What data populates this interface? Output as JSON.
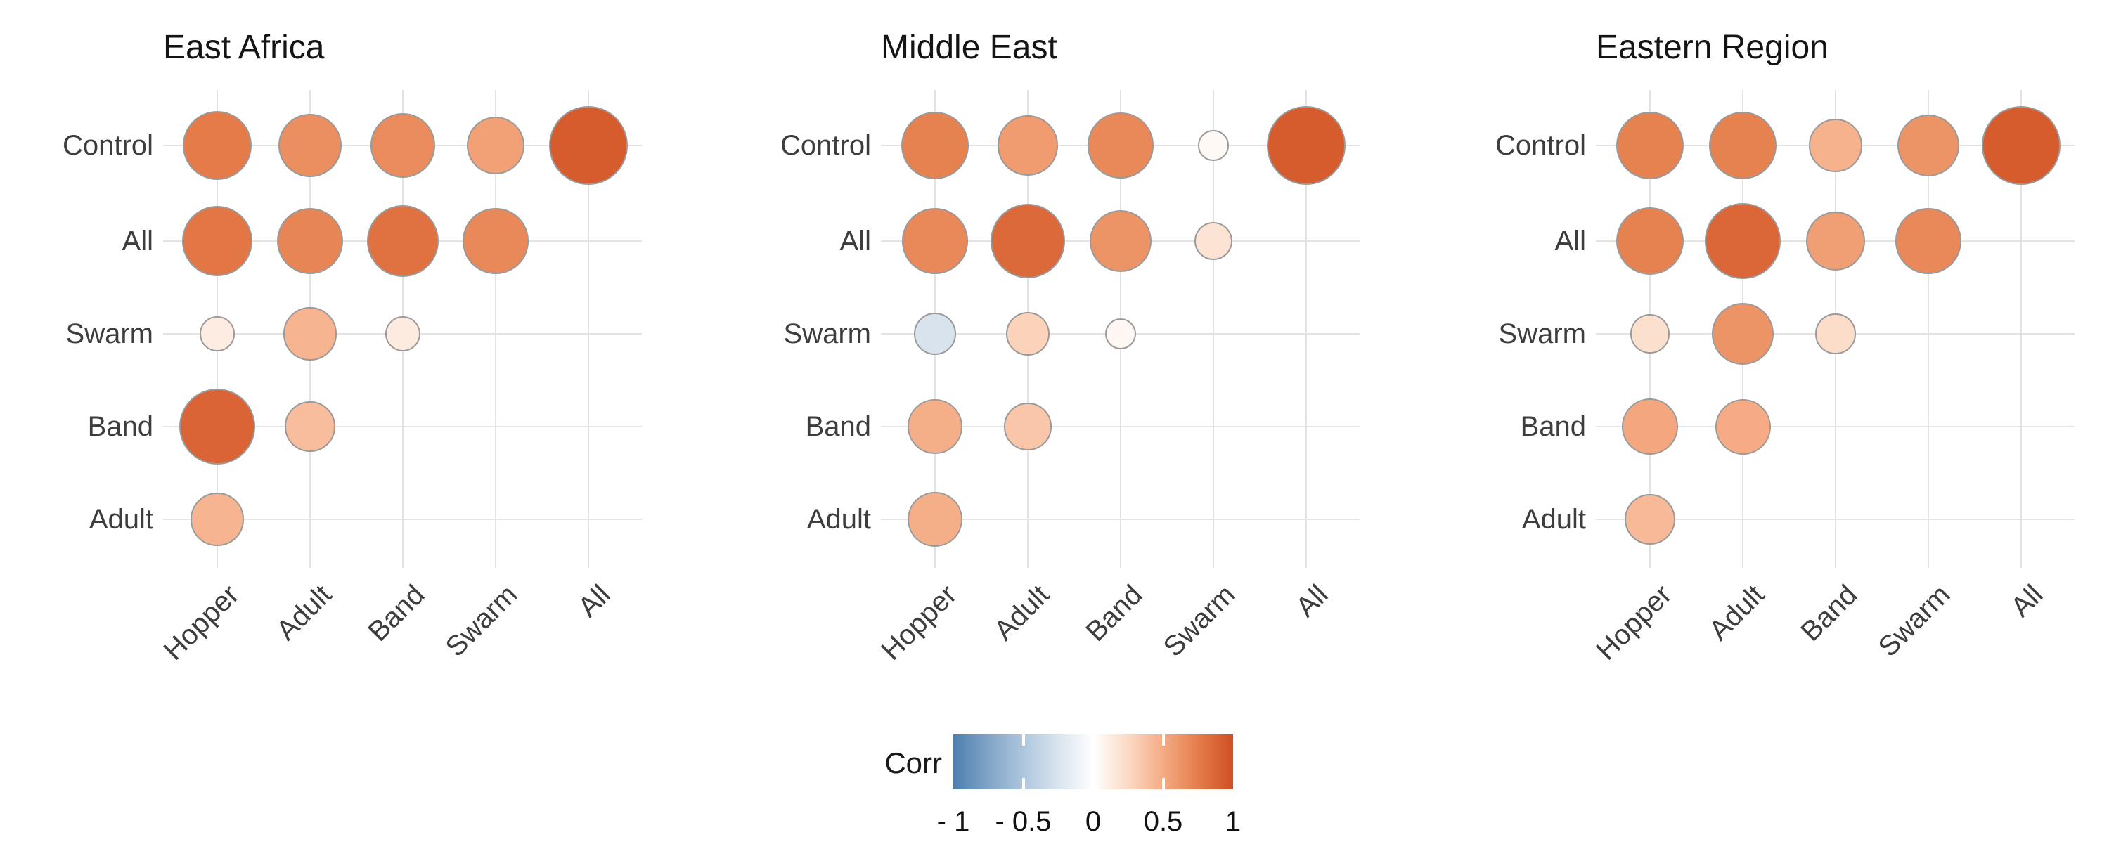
{
  "chart_data": {
    "type": "bubble-correlation-matrix",
    "description": "Three correlation matrices shown as sized/colored circles; circle size and color encode correlation coefficient",
    "x_categories": [
      "Hopper",
      "Adult",
      "Band",
      "Swarm",
      "All"
    ],
    "y_categories": [
      "Control",
      "All",
      "Swarm",
      "Band",
      "Adult"
    ],
    "panels": [
      {
        "title": "East Africa",
        "rows": [
          [
            0.75,
            0.65,
            0.66,
            0.55,
            0.92
          ],
          [
            0.78,
            0.7,
            0.8,
            0.68,
            null
          ],
          [
            0.12,
            0.45,
            0.13,
            null,
            null
          ],
          [
            0.88,
            0.4,
            null,
            null,
            null
          ],
          [
            0.45,
            null,
            null,
            null,
            null
          ]
        ]
      },
      {
        "title": "Middle East",
        "rows": [
          [
            0.72,
            0.58,
            0.68,
            0.04,
            0.92
          ],
          [
            0.68,
            0.85,
            0.62,
            0.18,
            null
          ],
          [
            -0.25,
            0.28,
            0.05,
            null,
            null
          ],
          [
            0.48,
            0.35,
            null,
            null,
            null
          ],
          [
            0.48,
            null,
            null,
            null,
            null
          ]
        ]
      },
      {
        "title": "Eastern Region",
        "rows": [
          [
            0.72,
            0.72,
            0.46,
            0.62,
            0.93
          ],
          [
            0.72,
            0.86,
            0.57,
            0.68,
            null
          ],
          [
            0.2,
            0.62,
            0.22,
            null,
            null
          ],
          [
            0.52,
            0.5,
            null,
            null,
            null
          ],
          [
            0.42,
            null,
            null,
            null,
            null
          ]
        ]
      }
    ],
    "legend": {
      "label": "Corr",
      "tick_labels": [
        "- 1",
        "- 0.5",
        "0",
        "0.5",
        "1"
      ],
      "range": [
        -1,
        1
      ],
      "grid": true,
      "legend_position": "bottom-center"
    },
    "colors": {
      "positive_max": "#d04e22",
      "negative_max": "#4d7fb0",
      "midpoint": "#ffffff",
      "circle_border": "#9a9a9a",
      "gridline": "#e3e3e3",
      "axis_text": "#3d3d3d",
      "title_text": "#141414"
    }
  }
}
